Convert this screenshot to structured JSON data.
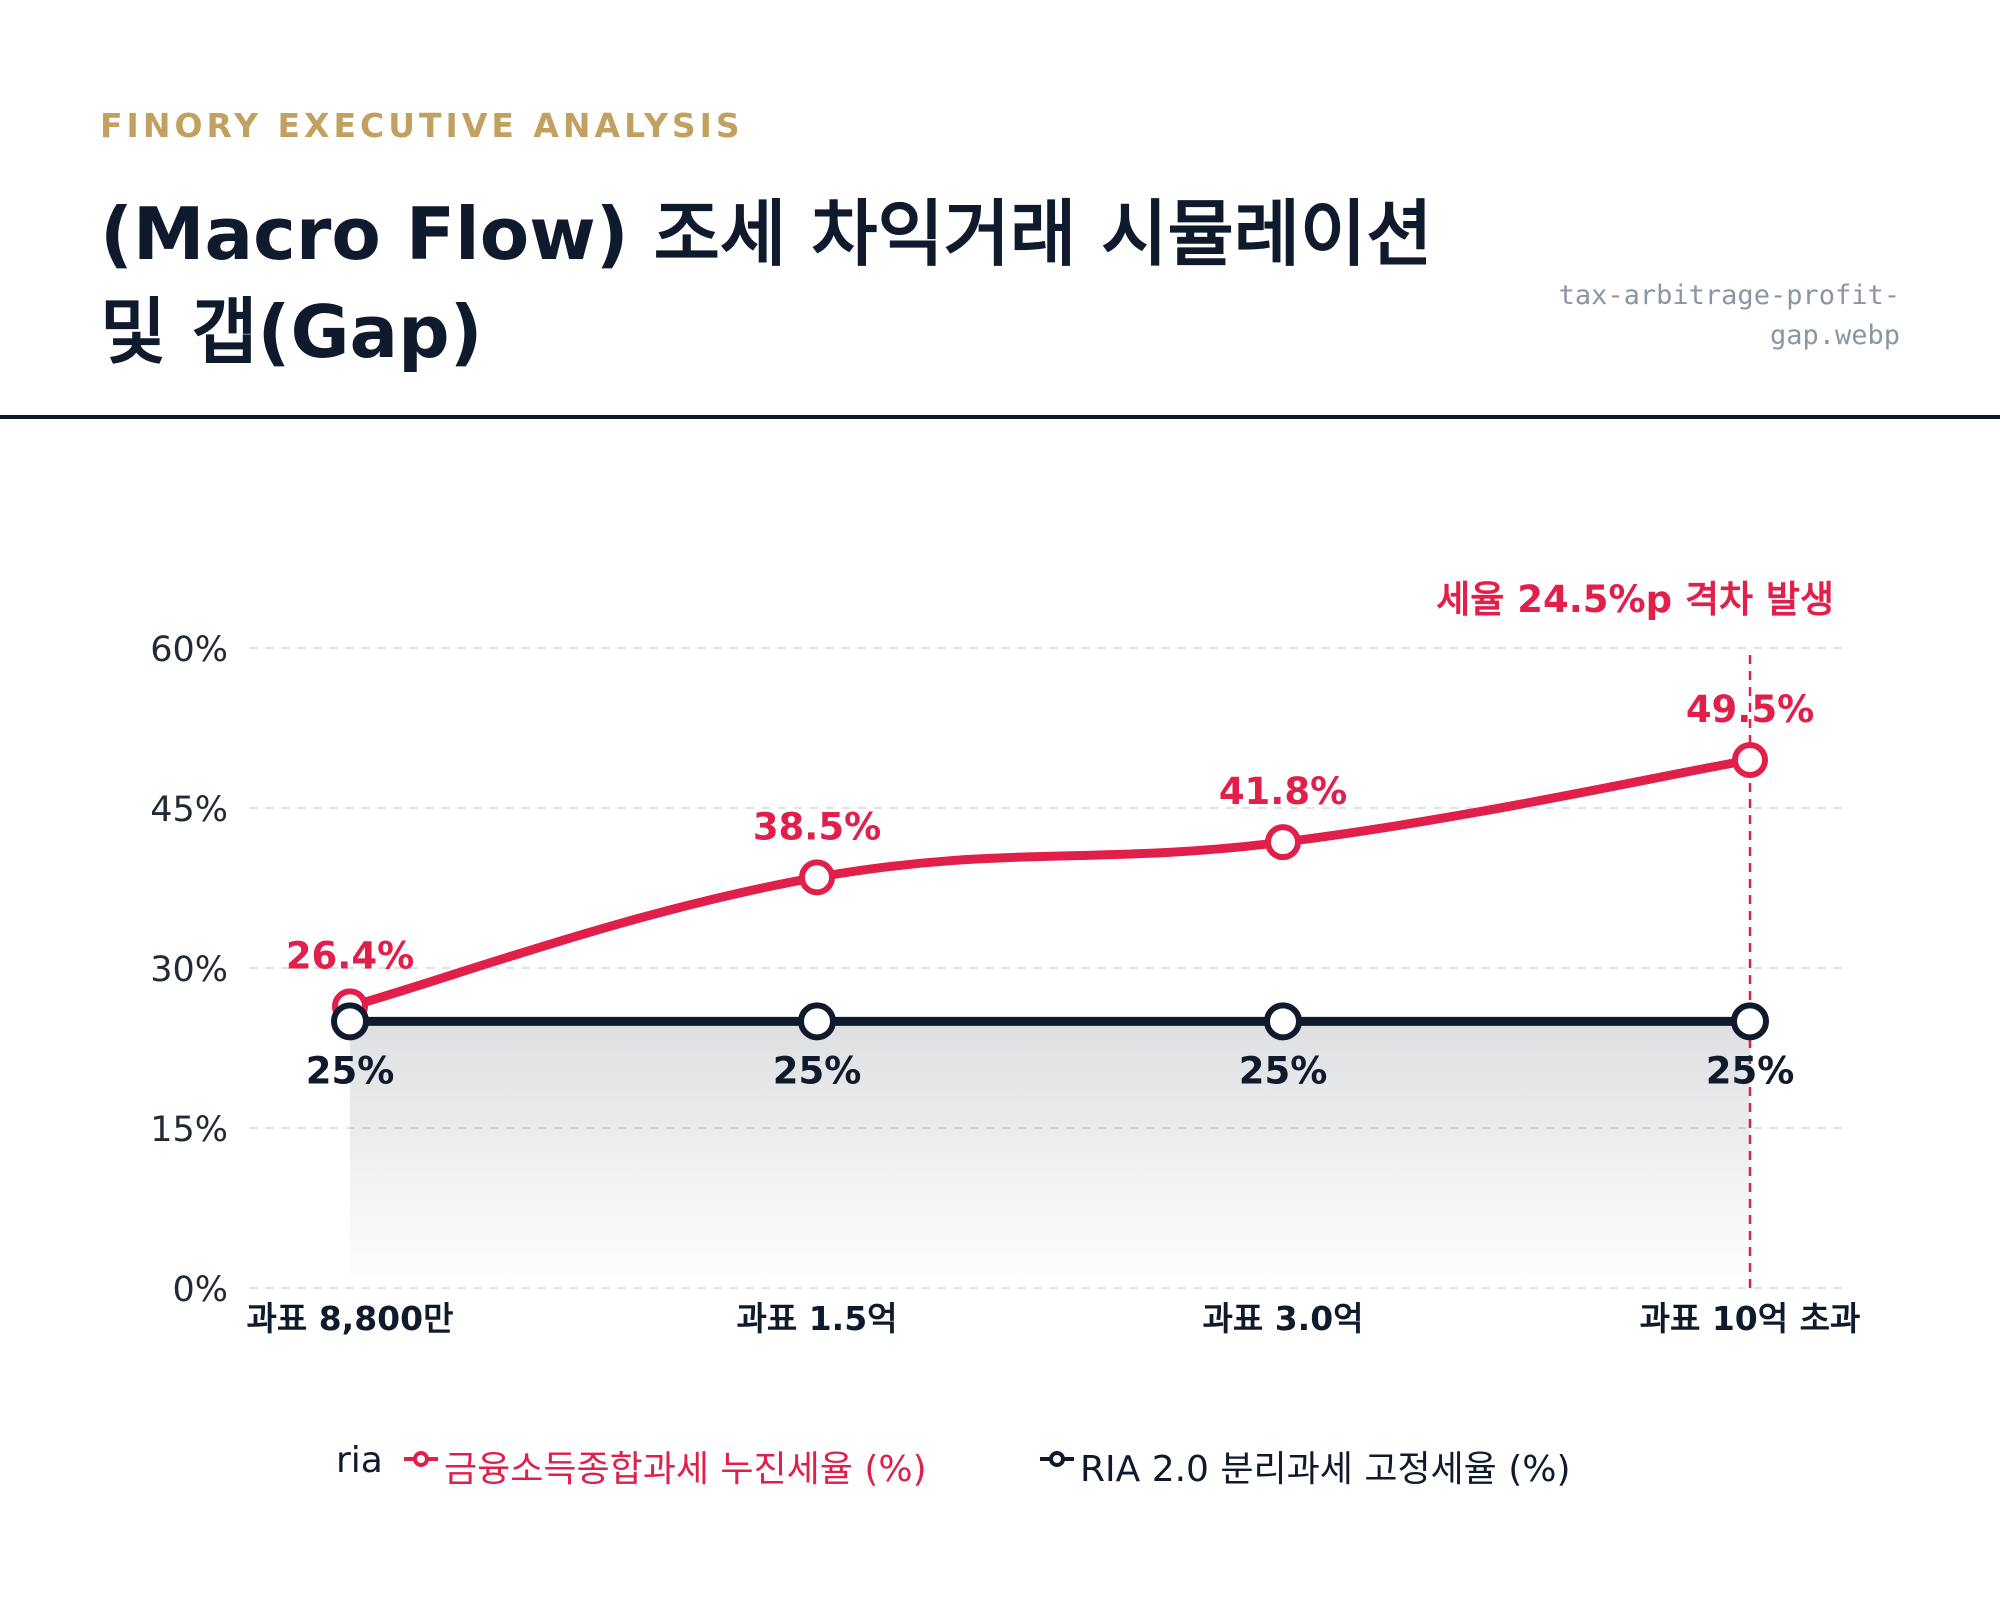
{
  "header": {
    "eyebrow": "FINORY EXECUTIVE ANALYSIS",
    "title_line1": "(Macro Flow) 조세 차익거래 시뮬레이션",
    "title_line2": "및 갭(Gap)",
    "filename_line1": "tax-arbitrage-profit-",
    "filename_line2": "gap.webp"
  },
  "colors": {
    "accent_red": "#e0204a",
    "navy": "#0f1b2d",
    "gold": "#c2a060"
  },
  "chart_data": {
    "type": "line",
    "categories": [
      "과표 8,800만",
      "과표 1.5억",
      "과표 3.0억",
      "과표 10억 초과"
    ],
    "ylim": [
      0,
      60
    ],
    "yticks": [
      0,
      15,
      30,
      45,
      60
    ],
    "ytick_labels": [
      "0%",
      "15%",
      "30%",
      "45%",
      "60%"
    ],
    "grid": true,
    "series": [
      {
        "name": "금융소득종합과세 누진세율 (%)",
        "color": "#e0204a",
        "values": [
          26.4,
          38.5,
          41.8,
          49.5
        ],
        "labels": [
          "26.4%",
          "38.5%",
          "41.8%",
          "49.5%"
        ]
      },
      {
        "name": "RIA 2.0 분리과세 고정세율 (%)",
        "color": "#0f1b2d",
        "values": [
          25,
          25,
          25,
          25
        ],
        "labels": [
          "25%",
          "25%",
          "25%",
          "25%"
        ]
      }
    ],
    "annotation": {
      "text": "세율 24.5%p 격차 발생",
      "category_index": 3
    },
    "legend": {
      "title": "ria",
      "placement": "bottom"
    }
  }
}
